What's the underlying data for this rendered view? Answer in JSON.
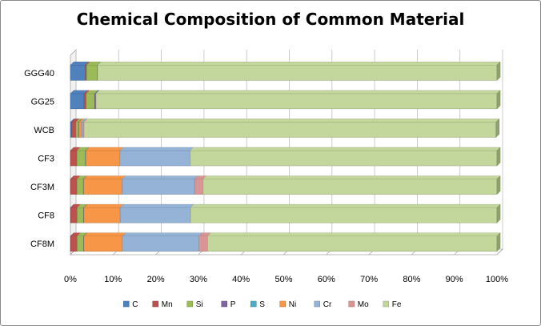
{
  "chart_data": {
    "type": "bar",
    "orientation": "horizontal",
    "stacked": "100%",
    "title": "Chemical Composition of Common Material",
    "categories": [
      "CF8M",
      "CF8",
      "CF3M",
      "CF3",
      "WCB",
      "GG25",
      "GGG40"
    ],
    "x_ticks": [
      "0%",
      "10%",
      "20%",
      "30%",
      "40%",
      "50%",
      "60%",
      "70%",
      "80%",
      "90%",
      "100%"
    ],
    "xlim": [
      0,
      100
    ],
    "grid": true,
    "legend": "bottom",
    "series": [
      {
        "name": "C",
        "color": "#4f81bd",
        "values": [
          0.08,
          0.08,
          0.03,
          0.03,
          0.3,
          3.2,
          3.5
        ]
      },
      {
        "name": "Mn",
        "color": "#c0504d",
        "values": [
          1.5,
          1.5,
          1.5,
          1.5,
          1.0,
          0.5,
          0.3
        ]
      },
      {
        "name": "Si",
        "color": "#9bbb59",
        "values": [
          1.5,
          1.5,
          1.5,
          2.0,
          0.6,
          2.0,
          2.5
        ]
      },
      {
        "name": "P",
        "color": "#8064a2",
        "values": [
          0.04,
          0.04,
          0.04,
          0.04,
          0.04,
          0.2,
          0.05
        ]
      },
      {
        "name": "S",
        "color": "#4bacc6",
        "values": [
          0.04,
          0.04,
          0.04,
          0.04,
          0.045,
          0.1,
          0.02
        ]
      },
      {
        "name": "Ni",
        "color": "#f79646",
        "values": [
          9.0,
          8.5,
          9.0,
          8.0,
          0.5,
          0,
          0
        ]
      },
      {
        "name": "Cr",
        "color": "#95b3d7",
        "values": [
          18.0,
          16.5,
          17.0,
          16.5,
          0.5,
          0,
          0
        ]
      },
      {
        "name": "Mo",
        "color": "#d99694",
        "values": [
          2.0,
          0,
          2.0,
          0,
          0.2,
          0,
          0
        ]
      },
      {
        "name": "Fe",
        "color": "#c3d69b",
        "values": [
          67.84,
          71.84,
          68.89,
          71.89,
          96.6,
          94.0,
          93.63
        ]
      }
    ]
  }
}
